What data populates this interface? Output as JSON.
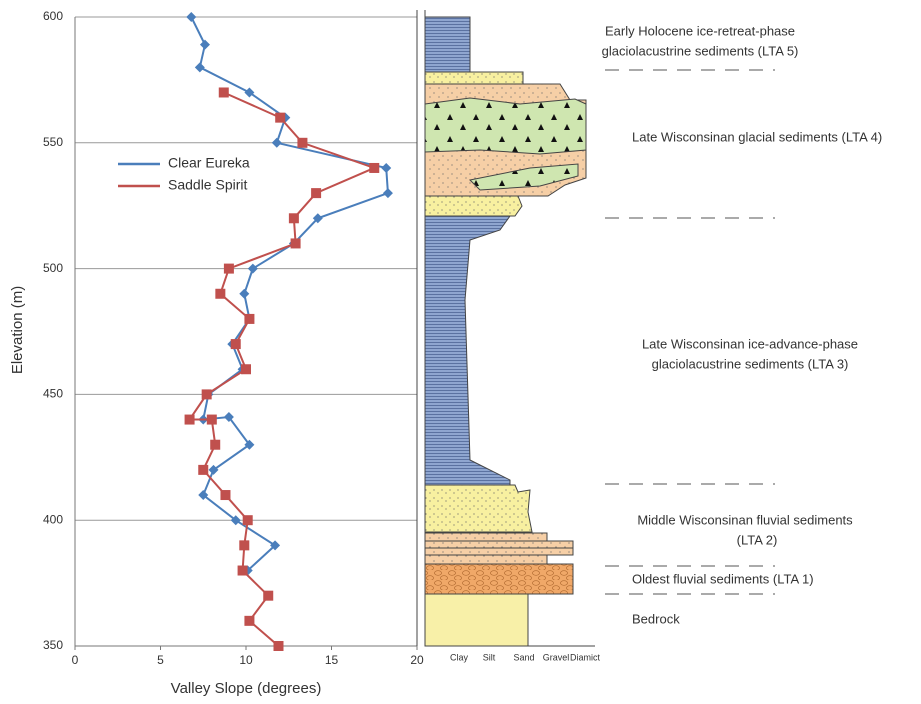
{
  "chart_data": {
    "type": "line",
    "x_label": "Valley Slope (degrees)",
    "y_label": "Elevation (m)",
    "xlim": [
      0,
      20
    ],
    "xticks": [
      0,
      5,
      10,
      15,
      20
    ],
    "ylim": [
      350,
      600
    ],
    "yticks": [
      350,
      400,
      450,
      500,
      550,
      600
    ],
    "grid": true,
    "legend": "upper-left",
    "series": [
      {
        "name": "Clear Eureka",
        "color": "#4a7ebb",
        "marker": "diamond",
        "x": [
          6.8,
          7.6,
          7.3,
          10.2,
          12.3,
          11.8,
          18.2,
          18.3,
          14.2,
          12.8,
          10.4,
          9.9,
          10.2,
          9.2,
          9.8,
          7.8,
          7.5,
          9.0,
          10.2,
          8.1,
          7.5,
          9.4,
          11.7,
          10.1
        ],
        "values": [
          600,
          589,
          580,
          570,
          560,
          550,
          540,
          530,
          520,
          510,
          500,
          490,
          480,
          470,
          460,
          450,
          440,
          441,
          430,
          420,
          410,
          400,
          390,
          380
        ]
      },
      {
        "name": "Saddle Spirit",
        "color": "#c0504d",
        "marker": "square",
        "x": [
          8.7,
          12.0,
          13.3,
          17.5,
          14.1,
          12.8,
          12.9,
          9.0,
          8.5,
          10.2,
          9.4,
          10.0,
          7.7,
          6.7,
          8.0,
          8.2,
          7.5,
          8.8,
          10.1,
          9.9,
          9.8,
          11.3,
          10.2,
          11.9
        ],
        "values": [
          570,
          560,
          550,
          540,
          530,
          520,
          510,
          500,
          490,
          480,
          470,
          460,
          450,
          440,
          440,
          430,
          420,
          410,
          400,
          390,
          380,
          370,
          360,
          350
        ]
      }
    ]
  },
  "column": {
    "grain_sizes": [
      "Clay",
      "Silt",
      "Sand",
      "Gravel",
      "Diamict"
    ],
    "units": [
      {
        "lines": [
          "Early Holocene ice-retreat-phase",
          "glaciolacustrine sediments (LTA 5)"
        ]
      },
      {
        "lines": [
          "Late Wisconsinan glacial sediments (LTA 4)"
        ]
      },
      {
        "lines": [
          "Late Wisconsinan ice-advance-phase",
          "glaciolacustrine sediments (LTA 3)"
        ]
      },
      {
        "lines": [
          "Middle Wisconsinan fluvial sediments",
          "(LTA 2)"
        ]
      },
      {
        "lines": [
          "Oldest fluvial sediments (LTA 1)"
        ]
      },
      {
        "lines": [
          "Bedrock"
        ]
      }
    ]
  }
}
